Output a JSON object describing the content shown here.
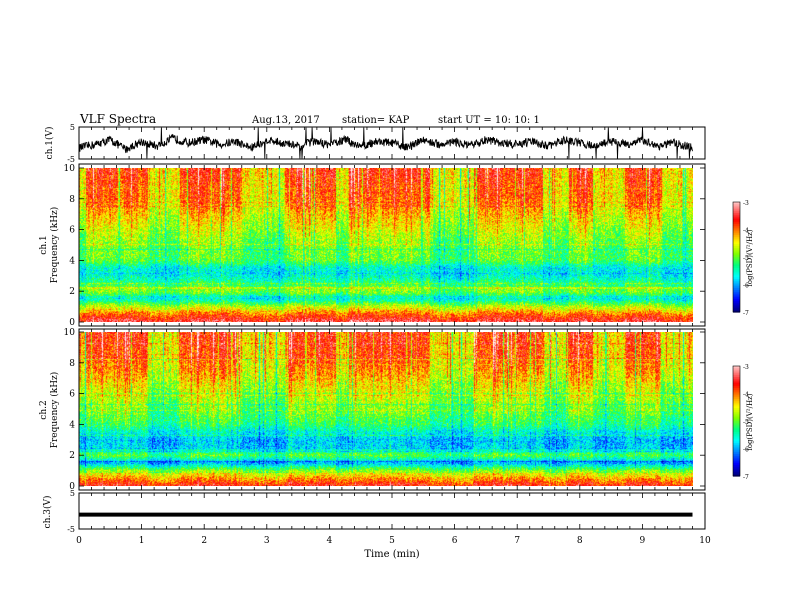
{
  "header": {
    "title": "VLF Spectra",
    "date": "Aug.13, 2017",
    "station": "station= KAP",
    "start": "start  UT  =   10: 10: 1"
  },
  "colors": {
    "ramp": [
      "#000080",
      "#0000ff",
      "#0080ff",
      "#00ffff",
      "#00ff80",
      "#80ff00",
      "#ffff00",
      "#ff8000",
      "#ff0000",
      "#ff8080",
      "#ffffff"
    ],
    "trace": "#000000",
    "axes": "#000000"
  },
  "chart_data": [
    {
      "type": "line",
      "panel": "ch1-waveform",
      "ylabel": "ch.1(V)",
      "ylim": [
        -5,
        5
      ],
      "yticks": [
        "5",
        "-5"
      ],
      "xlim": [
        0,
        10
      ],
      "x_unit": "min",
      "series": [
        {
          "x": [
            0,
            0.25,
            0.5,
            0.75,
            1,
            1.25,
            1.5,
            1.75,
            2,
            2.25,
            2.5,
            2.75,
            3,
            3.25,
            3.5,
            3.75,
            4,
            4.25,
            4.5,
            4.75,
            5,
            5.25,
            5.5,
            5.75,
            6,
            6.25,
            6.5,
            6.75,
            7,
            7.25,
            7.5,
            7.75,
            8,
            8.25,
            8.5,
            8.75,
            9,
            9.25,
            9.5,
            9.8
          ],
          "values": [
            -1.5,
            -0.5,
            1,
            -2,
            0.5,
            -1,
            1.5,
            0,
            1,
            -0.5,
            0.5,
            -1.5,
            1,
            0,
            -1,
            0.5,
            -0.5,
            1,
            -1,
            0.5,
            0,
            -1.5,
            1,
            -0.5,
            0.5,
            -1,
            1,
            0,
            -0.5,
            0.5,
            -1,
            1,
            0,
            -1,
            0.5,
            -0.5,
            1,
            -1,
            0,
            -1.5
          ]
        }
      ]
    },
    {
      "type": "heatmap",
      "panel": "ch1-spectrogram",
      "ylabel": "ch.1\nFrequency (kHz)",
      "ylim": [
        0,
        10
      ],
      "yticks": [
        "0",
        "2",
        "4",
        "6",
        "8",
        "10"
      ],
      "xlim": [
        0,
        10
      ],
      "zlabel": "log(PSD)(V²/Hz)",
      "zlim": [
        -7,
        -3
      ],
      "zticks": [
        "-3",
        "-4",
        "-5",
        "-6",
        "-7"
      ],
      "freq_profile_kHz": [
        0,
        0.5,
        1,
        1.5,
        2,
        2.5,
        3,
        3.5,
        4,
        5,
        6,
        7,
        8,
        9,
        10
      ],
      "freq_profile_log_psd": [
        -3.2,
        -3.8,
        -4.6,
        -5.6,
        -4.8,
        -5.2,
        -5.6,
        -5.6,
        -5.0,
        -4.9,
        -4.6,
        -4.3,
        -4.0,
        -3.9,
        -3.8
      ],
      "bright_intervals_min": [
        [
          0.1,
          1.1
        ],
        [
          1.6,
          2.6
        ],
        [
          3.3,
          4.1
        ],
        [
          4.3,
          5.6
        ],
        [
          6.3,
          7.4
        ],
        [
          7.8,
          8.2
        ],
        [
          8.7,
          9.3
        ]
      ]
    },
    {
      "type": "heatmap",
      "panel": "ch2-spectrogram",
      "ylabel": "ch.2\nFrequency (kHz)",
      "ylim": [
        0,
        10
      ],
      "yticks": [
        "0",
        "2",
        "4",
        "6",
        "8",
        "10"
      ],
      "xlim": [
        0,
        10
      ],
      "zlabel": "log(PSD)(V²/Hz)",
      "zlim": [
        -7,
        -3
      ],
      "zticks": [
        "-3",
        "-4",
        "-5",
        "-6",
        "-7"
      ],
      "freq_profile_kHz": [
        0,
        0.5,
        1,
        1.5,
        2,
        2.5,
        3,
        3.5,
        4,
        5,
        6,
        7,
        8,
        9,
        10
      ],
      "freq_profile_log_psd": [
        -3.4,
        -4.0,
        -4.8,
        -6.0,
        -5.0,
        -5.8,
        -5.9,
        -5.6,
        -5.2,
        -4.9,
        -4.6,
        -4.3,
        -4.0,
        -3.9,
        -3.8
      ],
      "bright_intervals_min": [
        [
          0.1,
          1.1
        ],
        [
          1.6,
          2.6
        ],
        [
          3.3,
          4.1
        ],
        [
          4.3,
          5.6
        ],
        [
          6.3,
          7.4
        ],
        [
          7.8,
          8.2
        ],
        [
          8.7,
          9.3
        ]
      ]
    },
    {
      "type": "line",
      "panel": "ch3-waveform",
      "ylabel": "ch.3(V)",
      "ylim": [
        -5,
        5
      ],
      "yticks": [
        "5",
        "-5"
      ],
      "xlim": [
        0,
        10
      ],
      "series": [
        {
          "x": [
            0,
            9.8
          ],
          "values": [
            -1,
            -1
          ]
        }
      ],
      "xlabel": "Time (min)",
      "xticks": [
        "0",
        "1",
        "2",
        "3",
        "4",
        "5",
        "6",
        "7",
        "8",
        "9",
        "10"
      ]
    }
  ]
}
